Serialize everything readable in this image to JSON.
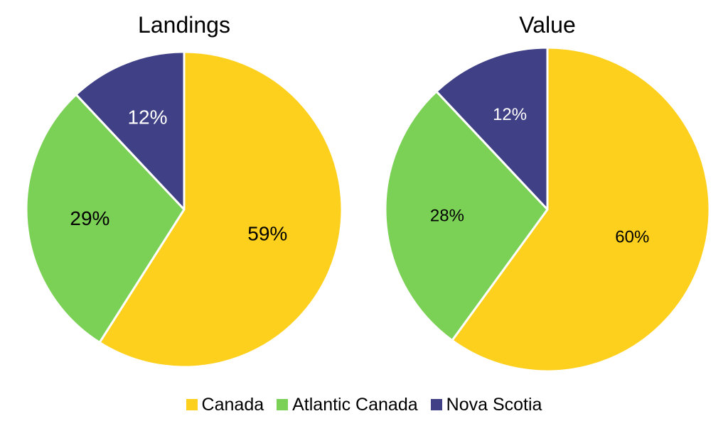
{
  "chart_data": [
    {
      "type": "pie",
      "title": "Landings",
      "categories": [
        "Canada",
        "Atlantic Canada",
        "Nova Scotia"
      ],
      "values": [
        59,
        29,
        12
      ],
      "labels": [
        "59%",
        "29%",
        "12%"
      ],
      "unit": "%",
      "start": "12 o'clock",
      "direction": "clockwise"
    },
    {
      "type": "pie",
      "title": "Value",
      "categories": [
        "Canada",
        "Atlantic Canada",
        "Nova Scotia"
      ],
      "values": [
        60,
        28,
        12
      ],
      "labels": [
        "60%",
        "28%",
        "12%"
      ],
      "unit": "%",
      "start": "12 o'clock",
      "direction": "clockwise"
    }
  ],
  "legend": {
    "placement": "bottom",
    "items": [
      {
        "label": "Canada",
        "color": "#FDD01E"
      },
      {
        "label": "Atlantic Canada",
        "color": "#7BD155"
      },
      {
        "label": "Nova Scotia",
        "color": "#3F4085"
      }
    ]
  },
  "colors": {
    "canada": "#FDD01E",
    "atlantic_canada": "#7BD155",
    "nova_scotia": "#3F4085",
    "label_on_dark": "#FFFFFF",
    "label_on_light": "#000000"
  }
}
